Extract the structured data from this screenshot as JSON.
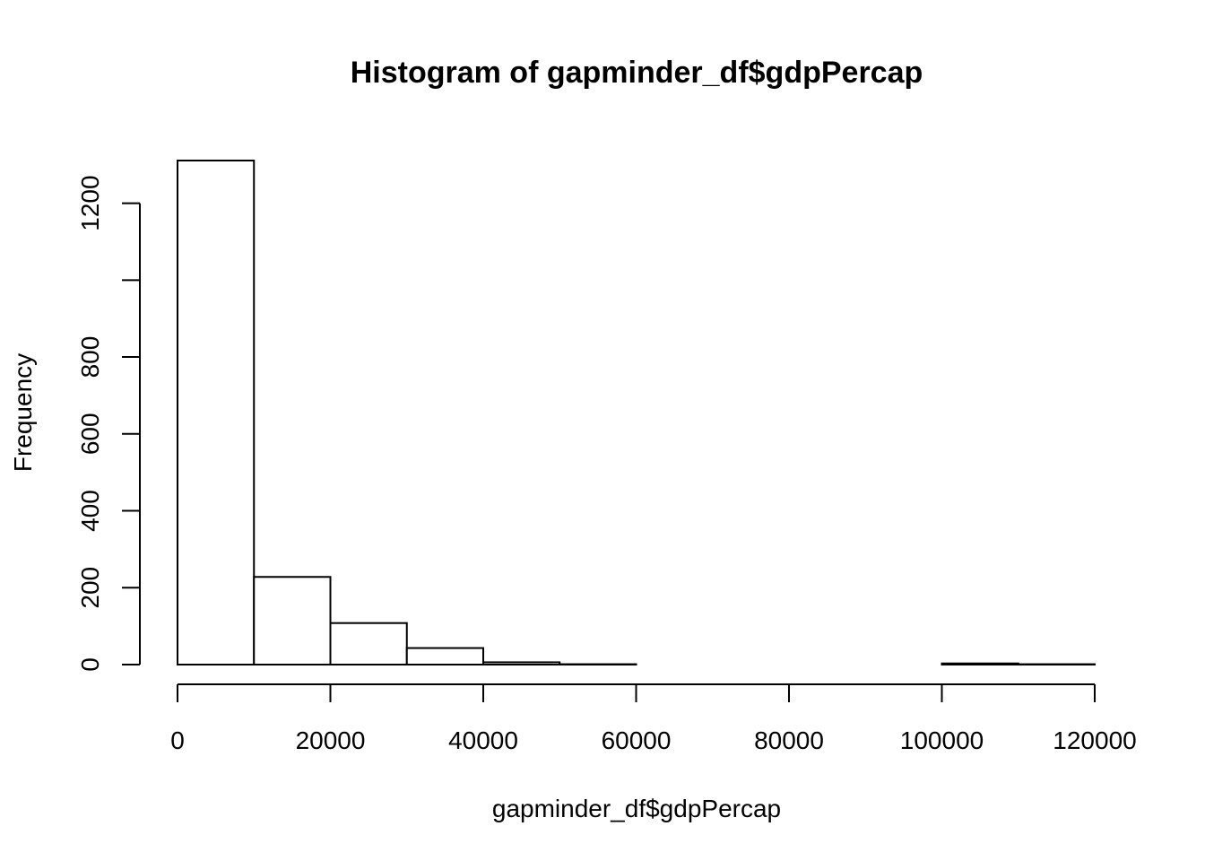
{
  "chart_data": {
    "type": "bar",
    "title": "Histogram of gapminder_df$gdpPercap",
    "xlabel": "gapminder_df$gdpPercap",
    "ylabel": "Frequency",
    "bins": [
      {
        "start": 0,
        "end": 10000,
        "count": 1311
      },
      {
        "start": 10000,
        "end": 20000,
        "count": 228
      },
      {
        "start": 20000,
        "end": 30000,
        "count": 108
      },
      {
        "start": 30000,
        "end": 40000,
        "count": 43
      },
      {
        "start": 40000,
        "end": 50000,
        "count": 6
      },
      {
        "start": 50000,
        "end": 60000,
        "count": 1
      },
      {
        "start": 60000,
        "end": 70000,
        "count": 0
      },
      {
        "start": 70000,
        "end": 80000,
        "count": 0
      },
      {
        "start": 80000,
        "end": 90000,
        "count": 0
      },
      {
        "start": 90000,
        "end": 100000,
        "count": 0
      },
      {
        "start": 100000,
        "end": 110000,
        "count": 3
      },
      {
        "start": 110000,
        "end": 120000,
        "count": 1
      }
    ],
    "xlim": [
      0,
      120000
    ],
    "ylim": [
      0,
      1311
    ],
    "x_ticks": [
      0,
      20000,
      40000,
      60000,
      80000,
      100000,
      120000
    ],
    "x_tick_labels": [
      "0",
      "20000",
      "40000",
      "60000",
      "80000",
      "100000",
      "120000"
    ],
    "y_ticks": [
      0,
      200,
      400,
      600,
      800,
      1000,
      1200
    ],
    "y_tick_labels": [
      "0",
      "200",
      "400",
      "600",
      "800",
      "",
      "1200"
    ],
    "grid": false,
    "legend": "none"
  }
}
